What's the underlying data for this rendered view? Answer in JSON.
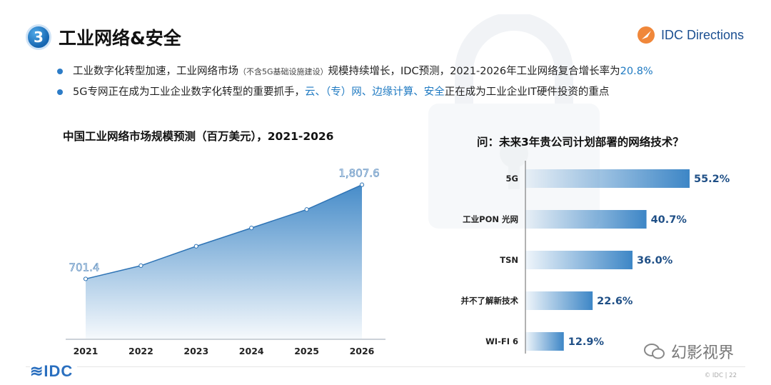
{
  "header": {
    "number": "3",
    "title": "工业网络&安全",
    "brand": "IDC Directions"
  },
  "bullets": [
    {
      "text_a": "工业数字化转型加速，工业网络市场",
      "text_small": "（不含5G基础设施建设）",
      "text_b": "规模持续增长，IDC预测，2021-2026年工业网络复合增长率为",
      "text_hl": "20.8%"
    },
    {
      "text_a": "5G专网正在成为工业企业数字化转型的重要抓手，",
      "text_hl": "云、（专）网、边缘计算、安全",
      "text_b": "正在成为工业企业IT硬件投资的重点"
    }
  ],
  "chart_data": [
    {
      "type": "area",
      "title": "中国工业网络市场规模预测（百万美元），2021-2026",
      "categories": [
        "2021",
        "2022",
        "2023",
        "2024",
        "2025",
        "2026"
      ],
      "values": [
        701.4,
        857,
        1085,
        1300,
        1517,
        1807.6
      ],
      "labels": [
        "701.4",
        "",
        "",
        "",
        "",
        "1,807.6"
      ],
      "color": "#3d86c6"
    },
    {
      "type": "bar",
      "orientation": "horizontal",
      "title": "问：未来3年贵公司计划部署的网络技术？",
      "categories": [
        "5G",
        "工业PON 光网",
        "TSN",
        "并不了解新技术",
        "WI-FI 6"
      ],
      "values": [
        55.2,
        40.7,
        36.0,
        22.6,
        12.9
      ],
      "labels": [
        "55.2%",
        "40.7%",
        "36.0%",
        "22.6%",
        "12.9%"
      ],
      "color": "#3d86c6"
    }
  ],
  "footer": {
    "logo": "≋IDC",
    "watermark": "幻影视界",
    "page": "© IDC |    22"
  },
  "colors": {
    "accent": "#1f7ac2",
    "bar": "#3d86c6",
    "title": "#111111"
  }
}
